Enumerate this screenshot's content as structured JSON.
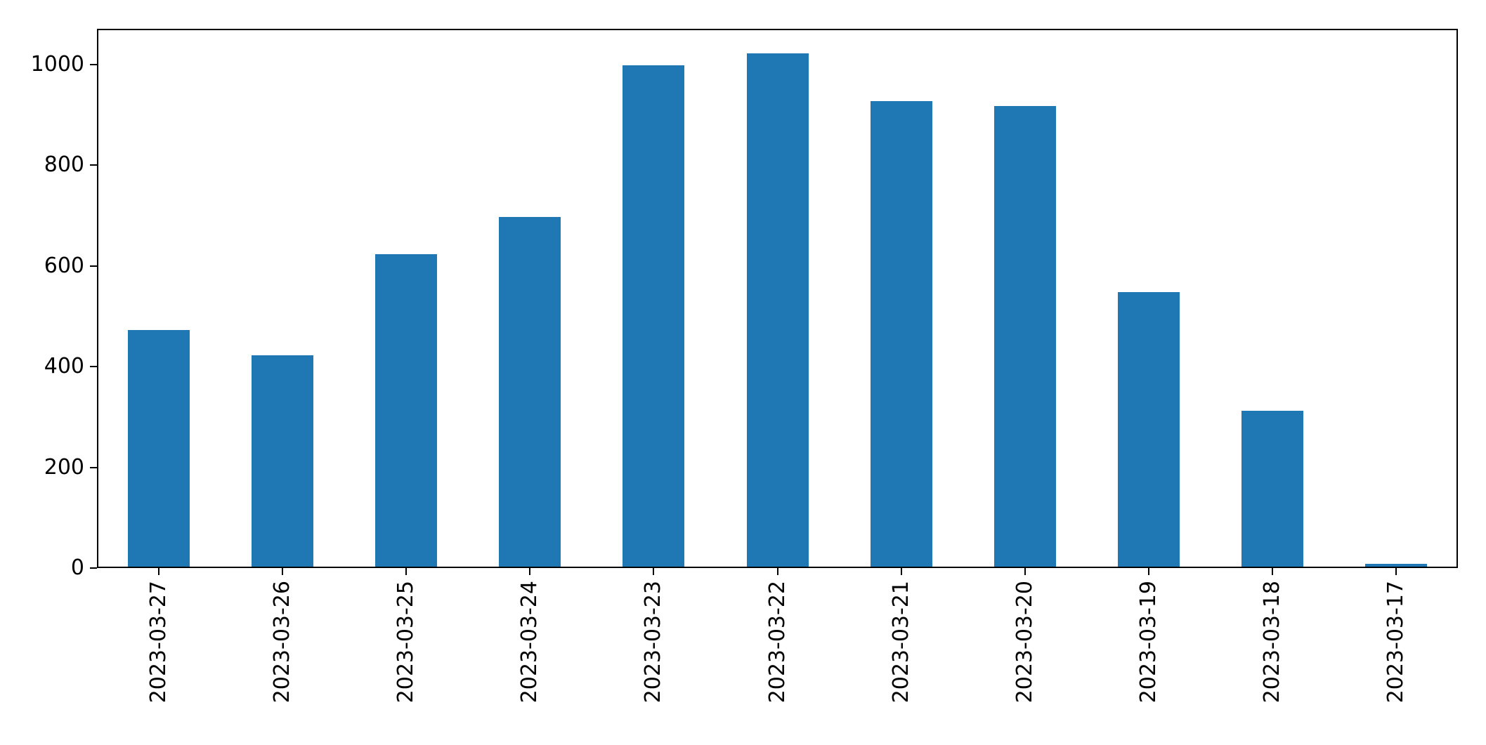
{
  "chart_data": {
    "type": "bar",
    "categories": [
      "2023-03-27",
      "2023-03-26",
      "2023-03-25",
      "2023-03-24",
      "2023-03-23",
      "2023-03-22",
      "2023-03-21",
      "2023-03-20",
      "2023-03-19",
      "2023-03-18",
      "2023-03-17"
    ],
    "values": [
      470,
      420,
      620,
      695,
      995,
      1020,
      925,
      915,
      545,
      310,
      5
    ],
    "title": "",
    "xlabel": "",
    "ylabel": "",
    "ylim": [
      0,
      1071
    ],
    "yticks": [
      0,
      200,
      400,
      600,
      800,
      1000
    ],
    "ytick_labels": [
      "0",
      "200",
      "400",
      "600",
      "800",
      "1000"
    ],
    "x_tick_rotation": 90,
    "bar_width_fraction": 0.5,
    "grid": false,
    "legend_position": "none",
    "bar_color": "#1f77b4"
  },
  "colors": {
    "bar": "#1f77b4",
    "background": "#ffffff",
    "axis": "#000000",
    "text": "#000000"
  }
}
